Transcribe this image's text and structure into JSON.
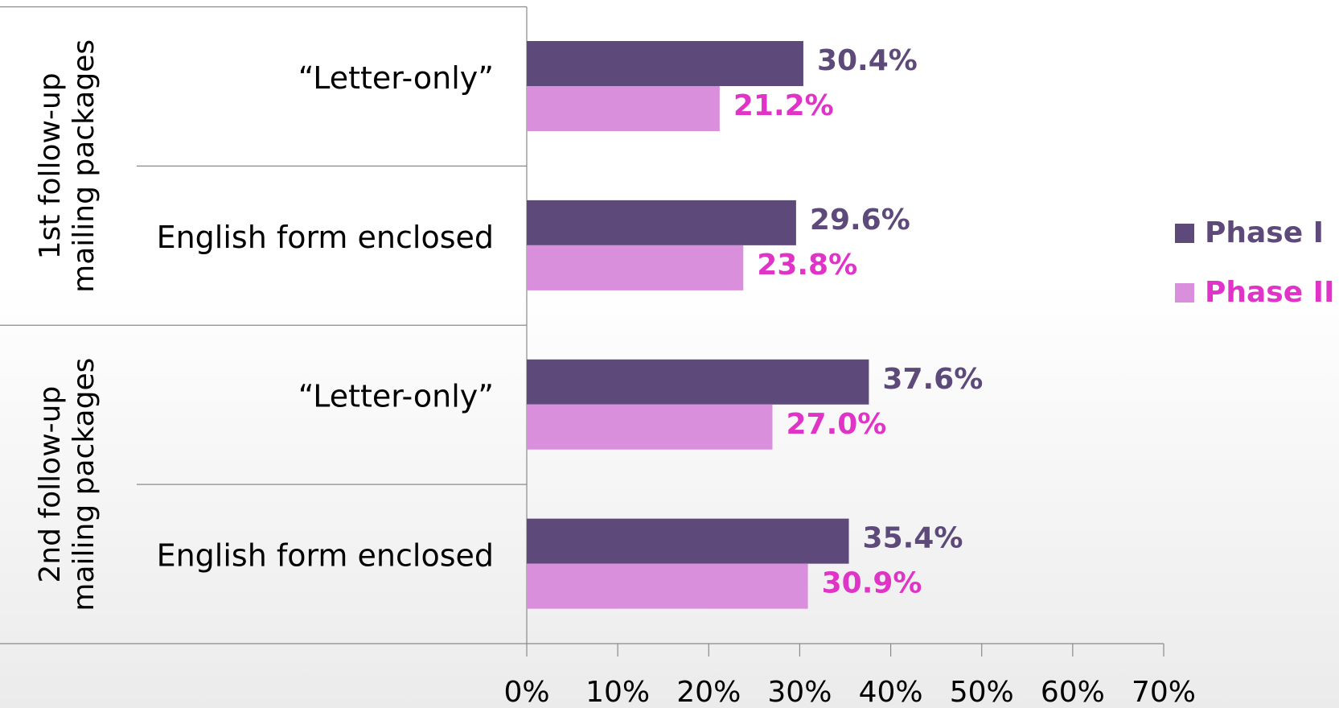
{
  "chart_data": {
    "type": "bar",
    "orientation": "horizontal",
    "group_labels": [
      [
        "1st follow-up",
        "mailing packages"
      ],
      [
        "2nd follow-up",
        "mailing packages"
      ]
    ],
    "categories": [
      "“Letter-only”",
      "English form enclosed",
      "“Letter-only”",
      "English form enclosed"
    ],
    "series": [
      {
        "name": "Phase I",
        "color": "#5e4a7a",
        "label_color": "#5e4a7a",
        "values": [
          30.4,
          29.6,
          37.6,
          35.4
        ],
        "value_labels": [
          "30.4%",
          "29.6%",
          "37.6%",
          "35.4%"
        ]
      },
      {
        "name": "Phase II",
        "color": "#da8fdc",
        "label_color": "#e033c8",
        "values": [
          21.2,
          23.8,
          27.0,
          30.9
        ],
        "value_labels": [
          "21.2%",
          "23.8%",
          "27.0%",
          "30.9%"
        ]
      }
    ],
    "xlim": [
      0,
      70
    ],
    "xticks": [
      {
        "value": 0,
        "label": "0%"
      },
      {
        "value": 10,
        "label": "10%"
      },
      {
        "value": 20,
        "label": "20%"
      },
      {
        "value": 30,
        "label": "30%"
      },
      {
        "value": 40,
        "label": "40%"
      },
      {
        "value": 50,
        "label": "50%"
      },
      {
        "value": 60,
        "label": "60%"
      },
      {
        "value": 70,
        "label": "70%"
      }
    ],
    "legend": "right"
  }
}
